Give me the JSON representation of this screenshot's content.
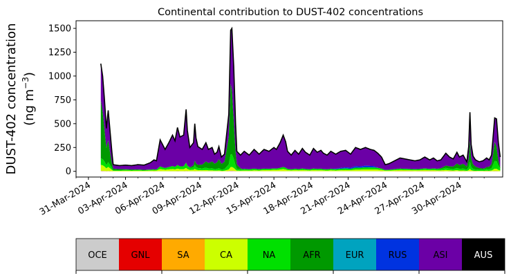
{
  "chart_data": {
    "type": "area",
    "stacked": true,
    "title": "Continental contribution to DUST-402 concentrations",
    "ylabel_line1": "DUST-402 concentration",
    "ylabel_line2_prefix": "(ng m",
    "ylabel_line2_sup": "−3",
    "ylabel_line2_suffix": ")",
    "xlabel": "",
    "ylim": [
      -60,
      1580
    ],
    "yticks": [
      0,
      250,
      500,
      750,
      1000,
      1250,
      1500
    ],
    "yticklabels": [
      "0",
      "250",
      "500",
      "750",
      "1000",
      "1250",
      "1500"
    ],
    "xlim_days": [
      -1.0,
      33.5
    ],
    "xticks": [
      {
        "day": 0,
        "label": "31-Mar-2024"
      },
      {
        "day": 3,
        "label": "03-Apr-2024"
      },
      {
        "day": 6,
        "label": "06-Apr-2024"
      },
      {
        "day": 9,
        "label": "09-Apr-2024"
      },
      {
        "day": 12,
        "label": "12-Apr-2024"
      },
      {
        "day": 15,
        "label": "15-Apr-2024"
      },
      {
        "day": 18,
        "label": "18-Apr-2024"
      },
      {
        "day": 21,
        "label": "21-Apr-2024"
      },
      {
        "day": 24,
        "label": "24-Apr-2024"
      },
      {
        "day": 27,
        "label": "27-Apr-2024"
      },
      {
        "day": 30,
        "label": "30-Apr-2024"
      }
    ],
    "total_points": [
      [
        1.0,
        1130
      ],
      [
        1.15,
        1000
      ],
      [
        1.3,
        750
      ],
      [
        1.45,
        450
      ],
      [
        1.6,
        640
      ],
      [
        1.75,
        420
      ],
      [
        1.9,
        200
      ],
      [
        2.0,
        70
      ],
      [
        2.5,
        60
      ],
      [
        3.0,
        65
      ],
      [
        3.5,
        60
      ],
      [
        4.0,
        70
      ],
      [
        4.5,
        65
      ],
      [
        5.0,
        90
      ],
      [
        5.3,
        120
      ],
      [
        5.5,
        110
      ],
      [
        5.8,
        330
      ],
      [
        6.0,
        280
      ],
      [
        6.2,
        230
      ],
      [
        6.5,
        300
      ],
      [
        6.8,
        380
      ],
      [
        7.0,
        320
      ],
      [
        7.2,
        460
      ],
      [
        7.4,
        360
      ],
      [
        7.7,
        380
      ],
      [
        7.9,
        650
      ],
      [
        8.0,
        430
      ],
      [
        8.2,
        250
      ],
      [
        8.5,
        300
      ],
      [
        8.6,
        500
      ],
      [
        8.7,
        350
      ],
      [
        8.85,
        260
      ],
      [
        9.2,
        230
      ],
      [
        9.5,
        300
      ],
      [
        9.7,
        230
      ],
      [
        10.0,
        250
      ],
      [
        10.2,
        180
      ],
      [
        10.4,
        200
      ],
      [
        10.55,
        260
      ],
      [
        10.75,
        150
      ],
      [
        11.0,
        180
      ],
      [
        11.35,
        600
      ],
      [
        11.5,
        1480
      ],
      [
        11.6,
        1500
      ],
      [
        11.75,
        1100
      ],
      [
        11.9,
        500
      ],
      [
        12.0,
        210
      ],
      [
        12.3,
        170
      ],
      [
        12.6,
        210
      ],
      [
        13.0,
        170
      ],
      [
        13.4,
        230
      ],
      [
        13.8,
        180
      ],
      [
        14.2,
        230
      ],
      [
        14.6,
        210
      ],
      [
        15.0,
        250
      ],
      [
        15.2,
        230
      ],
      [
        15.5,
        300
      ],
      [
        15.75,
        380
      ],
      [
        15.95,
        310
      ],
      [
        16.1,
        210
      ],
      [
        16.4,
        170
      ],
      [
        16.7,
        220
      ],
      [
        17.0,
        180
      ],
      [
        17.3,
        240
      ],
      [
        17.55,
        200
      ],
      [
        17.9,
        170
      ],
      [
        18.2,
        240
      ],
      [
        18.5,
        200
      ],
      [
        18.8,
        220
      ],
      [
        19.0,
        190
      ],
      [
        19.3,
        170
      ],
      [
        19.6,
        210
      ],
      [
        20.0,
        180
      ],
      [
        20.4,
        210
      ],
      [
        20.8,
        220
      ],
      [
        21.2,
        180
      ],
      [
        21.6,
        250
      ],
      [
        22.0,
        230
      ],
      [
        22.4,
        250
      ],
      [
        22.8,
        230
      ],
      [
        23.1,
        220
      ],
      [
        23.4,
        190
      ],
      [
        23.7,
        150
      ],
      [
        24.0,
        70
      ],
      [
        24.3,
        80
      ],
      [
        24.6,
        100
      ],
      [
        24.9,
        120
      ],
      [
        25.2,
        140
      ],
      [
        25.6,
        130
      ],
      [
        26.0,
        120
      ],
      [
        26.4,
        110
      ],
      [
        26.8,
        120
      ],
      [
        27.2,
        150
      ],
      [
        27.6,
        120
      ],
      [
        27.9,
        140
      ],
      [
        28.2,
        110
      ],
      [
        28.5,
        120
      ],
      [
        28.9,
        190
      ],
      [
        29.2,
        150
      ],
      [
        29.5,
        130
      ],
      [
        29.8,
        200
      ],
      [
        30.0,
        150
      ],
      [
        30.3,
        170
      ],
      [
        30.6,
        100
      ],
      [
        30.75,
        260
      ],
      [
        30.85,
        620
      ],
      [
        30.95,
        280
      ],
      [
        31.1,
        160
      ],
      [
        31.3,
        120
      ],
      [
        31.6,
        100
      ],
      [
        31.9,
        110
      ],
      [
        32.2,
        140
      ],
      [
        32.4,
        120
      ],
      [
        32.6,
        170
      ],
      [
        32.85,
        560
      ],
      [
        33.0,
        550
      ],
      [
        33.15,
        300
      ],
      [
        33.3,
        150
      ]
    ],
    "series": [
      {
        "name": "OCE",
        "color": "#cccccc",
        "fractions": [
          [
            1,
            0.002
          ],
          [
            33.3,
            0.002
          ]
        ]
      },
      {
        "name": "GNL",
        "color": "#e50000",
        "fractions": [
          [
            1,
            0.003
          ],
          [
            33.3,
            0.003
          ]
        ]
      },
      {
        "name": "SA",
        "color": "#ffaa00",
        "fractions": [
          [
            1,
            0.004
          ],
          [
            33.3,
            0.004
          ]
        ]
      },
      {
        "name": "CA",
        "color": "#ccff00",
        "fractions": [
          [
            1,
            0.06
          ],
          [
            3,
            0.1
          ],
          [
            6,
            0.07
          ],
          [
            11.5,
            0.03
          ],
          [
            15,
            0.06
          ],
          [
            20,
            0.05
          ],
          [
            24,
            0.1
          ],
          [
            28,
            0.09
          ],
          [
            31,
            0.04
          ],
          [
            33.3,
            0.05
          ]
        ]
      },
      {
        "name": "NA",
        "color": "#00e000",
        "fractions": [
          [
            1,
            0.12
          ],
          [
            3,
            0.22
          ],
          [
            6,
            0.15
          ],
          [
            11.5,
            0.12
          ],
          [
            15,
            0.12
          ],
          [
            20,
            0.12
          ],
          [
            24,
            0.2
          ],
          [
            28,
            0.2
          ],
          [
            31,
            0.16
          ],
          [
            33.3,
            0.2
          ]
        ]
      },
      {
        "name": "AFR",
        "color": "#009900",
        "fractions": [
          [
            1,
            0.66
          ],
          [
            2,
            0.4
          ],
          [
            4,
            0.28
          ],
          [
            6,
            0.12
          ],
          [
            8,
            0.14
          ],
          [
            11.5,
            0.62
          ],
          [
            12.5,
            0.08
          ],
          [
            16,
            0.07
          ],
          [
            20,
            0.07
          ],
          [
            24,
            0.09
          ],
          [
            28,
            0.22
          ],
          [
            30.85,
            0.52
          ],
          [
            32,
            0.25
          ],
          [
            32.85,
            0.55
          ],
          [
            33.3,
            0.3
          ]
        ]
      },
      {
        "name": "EUR",
        "color": "#00a3bf",
        "fractions": [
          [
            1,
            0.01
          ],
          [
            33.3,
            0.01
          ]
        ]
      },
      {
        "name": "RUS",
        "color": "#0033e0",
        "fractions": [
          [
            1,
            0.03
          ],
          [
            10,
            0.02
          ],
          [
            18,
            0.04
          ],
          [
            21,
            0.2
          ],
          [
            23,
            0.25
          ],
          [
            24,
            0.12
          ],
          [
            27,
            0.08
          ],
          [
            30,
            0.04
          ],
          [
            33.3,
            0.03
          ]
        ]
      },
      {
        "name": "ASI",
        "color": "#6b00a6",
        "fractions": [
          [
            1,
            1.0
          ],
          [
            33.3,
            1.0
          ]
        ]
      },
      {
        "name": "AUS",
        "color": "#000000",
        "fractions": [
          [
            1,
            0.0
          ],
          [
            33.3,
            0.0
          ]
        ]
      }
    ],
    "legend": {
      "placement": "bottom",
      "entries": [
        {
          "label": "OCE",
          "color": "#cccccc",
          "text_color": "#000000"
        },
        {
          "label": "GNL",
          "color": "#e50000",
          "text_color": "#000000"
        },
        {
          "label": "SA",
          "color": "#ffaa00",
          "text_color": "#000000"
        },
        {
          "label": "CA",
          "color": "#ccff00",
          "text_color": "#000000"
        },
        {
          "label": "NA",
          "color": "#00e000",
          "text_color": "#000000"
        },
        {
          "label": "AFR",
          "color": "#009900",
          "text_color": "#000000"
        },
        {
          "label": "EUR",
          "color": "#00a3bf",
          "text_color": "#000000"
        },
        {
          "label": "RUS",
          "color": "#0033e0",
          "text_color": "#000000"
        },
        {
          "label": "ASI",
          "color": "#6b00a6",
          "text_color": "#000000"
        },
        {
          "label": "AUS",
          "color": "#000000",
          "text_color": "#ffffff"
        }
      ]
    },
    "grid": false
  }
}
